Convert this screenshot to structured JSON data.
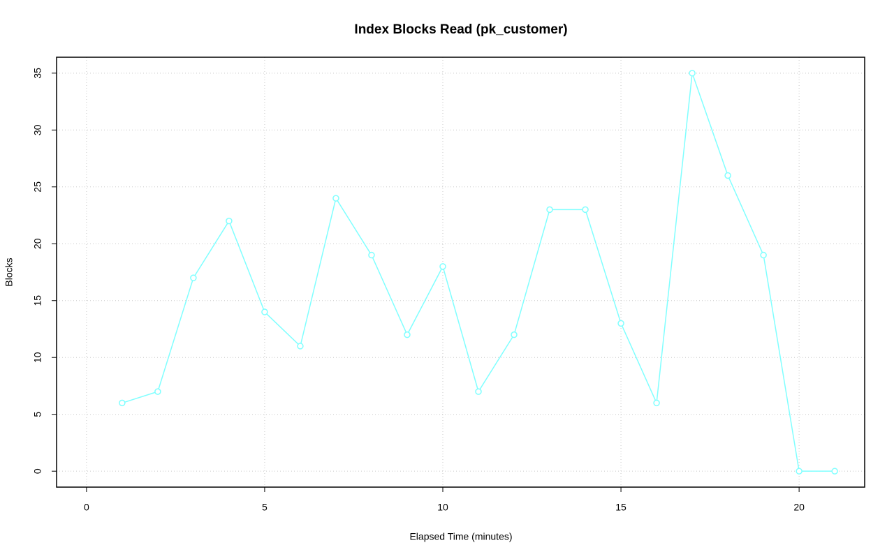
{
  "chart_data": {
    "type": "line",
    "title": "Index Blocks Read (pk_customer)",
    "x_label": "Elapsed Time (minutes)",
    "y_label": "Blocks",
    "x": [
      1,
      2,
      3,
      4,
      5,
      6,
      7,
      8,
      9,
      10,
      11,
      12,
      13,
      14,
      15,
      16,
      17,
      18,
      19,
      20,
      21
    ],
    "values": [
      6,
      7,
      17,
      22,
      14,
      11,
      24,
      19,
      12,
      18,
      7,
      12,
      23,
      23,
      13,
      6,
      35,
      26,
      19,
      0,
      0
    ],
    "color": "#80ffff",
    "xlim": [
      -0.84,
      21.84
    ],
    "xticks": [
      0,
      5,
      10,
      15,
      20
    ],
    "ylim": [
      -1.4,
      36.4
    ],
    "yticks": [
      0,
      5,
      10,
      15,
      20,
      25,
      30,
      35
    ],
    "grid": true
  }
}
